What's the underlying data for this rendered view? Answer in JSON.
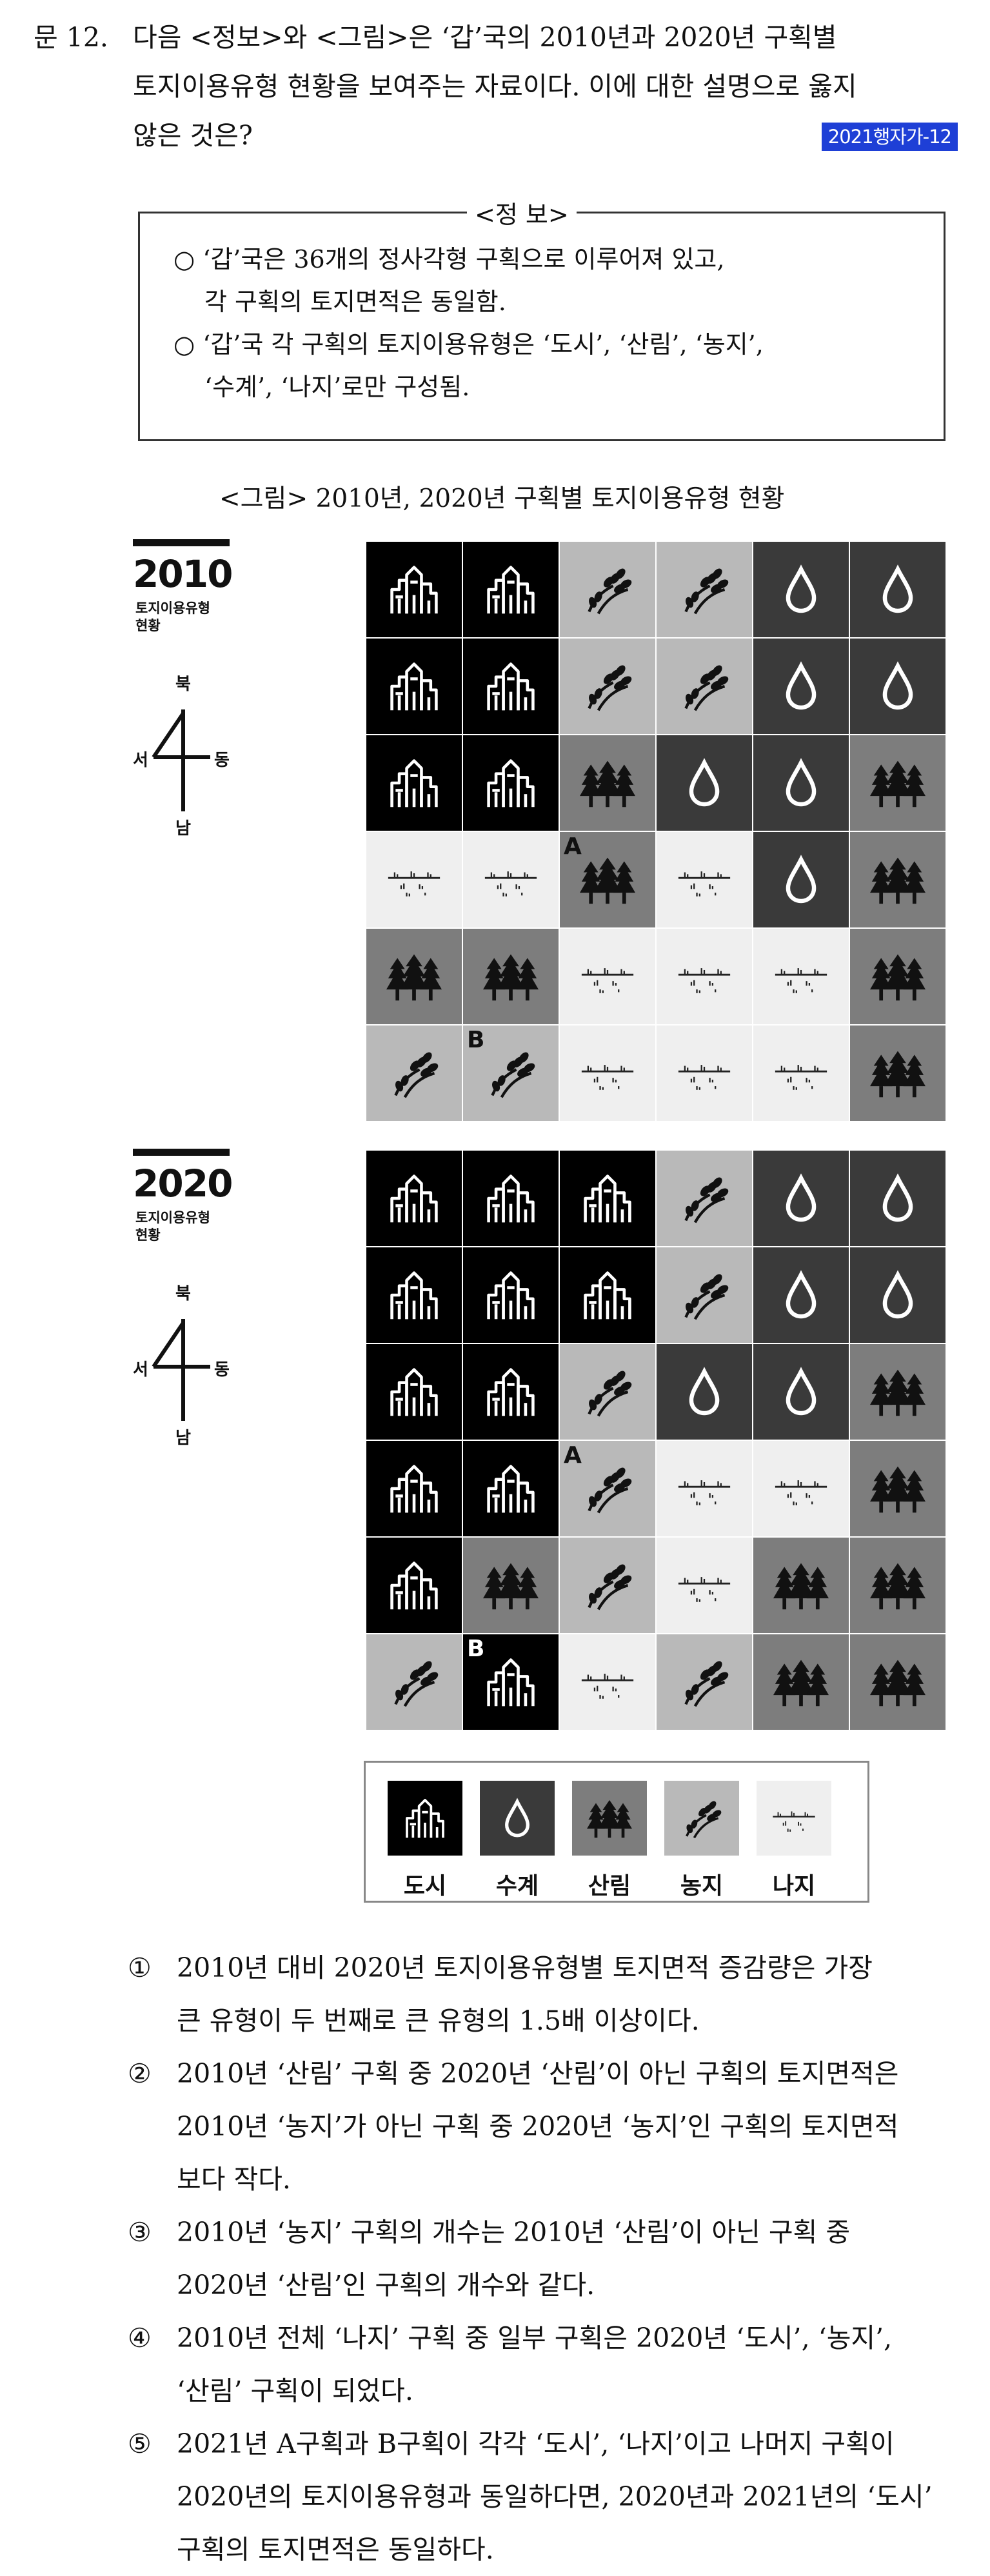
{
  "question": {
    "number": "문 12.",
    "lines": [
      "다음 <정보>와 <그림>은 ‘갑’국의 2010년과 2020년 구획별",
      "토지이용유형 현황을 보여주는 자료이다. 이에 대한 설명으로 옳지",
      "않은 것은?"
    ],
    "badge": "2021행자가-12"
  },
  "info": {
    "title": "<정 보>",
    "lines": [
      "○ ‘갑’국은 36개의 정사각형 구획으로 이루어져 있고,",
      "각 구획의 토지면적은 동일함.",
      "○ ‘갑’국 각 구획의 토지이용유형은 ‘도시’, ‘산림’, ‘농지’,",
      "‘수계’, ‘나지’로만 구성됨."
    ]
  },
  "figure": {
    "caption": "<그림> 2010년, 2020년 구획별 토지이용유형 현황",
    "compass": {
      "north": "북",
      "south": "남",
      "west": "서",
      "east": "동"
    },
    "maps": [
      {
        "year": "2010",
        "subtitle_lines": [
          "토지이용유형",
          "현황"
        ],
        "grid": [
          [
            "dosi",
            "dosi",
            "nongji",
            "nongji",
            "sugye",
            "sugye"
          ],
          [
            "dosi",
            "dosi",
            "nongji",
            "nongji",
            "sugye",
            "sugye"
          ],
          [
            "dosi",
            "dosi",
            "sallim",
            "sugye",
            "sugye",
            "sallim"
          ],
          [
            "naji",
            "naji",
            "sallim",
            "naji",
            "sugye",
            "sallim"
          ],
          [
            "sallim",
            "sallim",
            "naji",
            "naji",
            "naji",
            "sallim"
          ],
          [
            "nongji",
            "nongji",
            "naji",
            "naji",
            "naji",
            "sallim"
          ]
        ],
        "marks": [
          {
            "label": "A",
            "row": 3,
            "col": 2
          },
          {
            "label": "B",
            "row": 5,
            "col": 1
          }
        ]
      },
      {
        "year": "2020",
        "subtitle_lines": [
          "토지이용유형",
          "현황"
        ],
        "grid": [
          [
            "dosi",
            "dosi",
            "dosi",
            "nongji",
            "sugye",
            "sugye"
          ],
          [
            "dosi",
            "dosi",
            "dosi",
            "nongji",
            "sugye",
            "sugye"
          ],
          [
            "dosi",
            "dosi",
            "nongji",
            "sugye",
            "sugye",
            "sallim"
          ],
          [
            "dosi",
            "dosi",
            "nongji",
            "naji",
            "naji",
            "sallim"
          ],
          [
            "dosi",
            "sallim",
            "nongji",
            "naji",
            "sallim",
            "sallim"
          ],
          [
            "nongji",
            "dosi",
            "naji",
            "nongji",
            "sallim",
            "sallim"
          ]
        ],
        "marks": [
          {
            "label": "A",
            "row": 3,
            "col": 2
          },
          {
            "label": "B",
            "row": 5,
            "col": 1
          }
        ]
      }
    ],
    "legend": [
      {
        "type": "dosi",
        "label": "도시"
      },
      {
        "type": "sugye",
        "label": "수계"
      },
      {
        "type": "sallim",
        "label": "산림"
      },
      {
        "type": "nongji",
        "label": "농지"
      },
      {
        "type": "naji",
        "label": "나지"
      }
    ]
  },
  "options": [
    {
      "num": "①",
      "lines": [
        "2010년 대비 2020년 토지이용유형별 토지면적 증감량은 가장",
        "큰 유형이 두 번째로 큰 유형의 1.5배 이상이다."
      ]
    },
    {
      "num": "②",
      "lines": [
        "2010년 ‘산림’ 구획 중 2020년 ‘산림’이 아닌 구획의 토지면적은",
        "2010년 ‘농지’가 아닌 구획 중 2020년 ‘농지’인 구획의 토지면적",
        "보다 작다."
      ]
    },
    {
      "num": "③",
      "lines": [
        "2010년 ‘농지’ 구획의 개수는 2010년 ‘산림’이 아닌 구획 중",
        "2020년 ‘산림’인 구획의 개수와 같다."
      ]
    },
    {
      "num": "④",
      "lines": [
        "2010년 전체 ‘나지’ 구획 중 일부 구획은 2020년 ‘도시’, ‘농지’,",
        "‘산림’ 구획이 되었다."
      ]
    },
    {
      "num": "⑤",
      "lines": [
        "2021년 A구획과 B구획이 각각 ‘도시’, ‘나지’이고 나머지 구획이",
        "2020년의 토지이용유형과 동일하다면, 2020년과 2021년의 ‘도시’",
        "구획의 토지면적은 동일하다."
      ]
    }
  ]
}
